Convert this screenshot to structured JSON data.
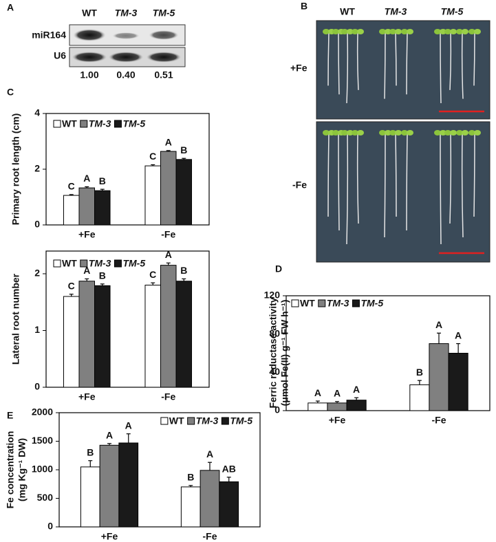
{
  "panel_labels": [
    "A",
    "B",
    "C",
    "D",
    "E"
  ],
  "blot": {
    "columns": [
      "WT",
      "TM-3",
      "TM-5"
    ],
    "rows": [
      "miR164",
      "U6"
    ],
    "quantities": [
      "1.00",
      "0.40",
      "0.51"
    ]
  },
  "photo": {
    "columns": [
      "WT",
      "TM-3",
      "TM-5"
    ],
    "rows": [
      "+Fe",
      "-Fe"
    ]
  },
  "chart_data": [
    {
      "type": "bar",
      "ylabel": "Primary root length (cm)",
      "categories": [
        "+Fe",
        "-Fe"
      ],
      "series": [
        {
          "name": "WT",
          "color": "#ffffff",
          "values": [
            1.06,
            2.12
          ],
          "errors": [
            0.03,
            0.04
          ],
          "letters": [
            "C",
            "C"
          ]
        },
        {
          "name": "TM-3",
          "color": "#808080",
          "values": [
            1.33,
            2.64
          ],
          "errors": [
            0.04,
            0.03
          ],
          "letters": [
            "A",
            "A"
          ]
        },
        {
          "name": "TM-5",
          "color": "#1a1a1a",
          "values": [
            1.23,
            2.35
          ],
          "errors": [
            0.05,
            0.04
          ],
          "letters": [
            "B",
            "B"
          ]
        }
      ],
      "ylim": [
        0,
        4
      ],
      "yticks": [
        0,
        2,
        4
      ],
      "legend": "upper left"
    },
    {
      "type": "bar",
      "ylabel": "Lateral root number",
      "categories": [
        "+Fe",
        "-Fe"
      ],
      "series": [
        {
          "name": "WT",
          "color": "#ffffff",
          "values": [
            1.6,
            1.8
          ],
          "errors": [
            0.04,
            0.04
          ],
          "letters": [
            "C",
            "C"
          ]
        },
        {
          "name": "TM-3",
          "color": "#808080",
          "values": [
            1.87,
            2.15
          ],
          "errors": [
            0.04,
            0.04
          ],
          "letters": [
            "A",
            "A"
          ]
        },
        {
          "name": "TM-5",
          "color": "#1a1a1a",
          "values": [
            1.79,
            1.87
          ],
          "errors": [
            0.03,
            0.04
          ],
          "letters": [
            "B",
            "B"
          ]
        }
      ],
      "ylim": [
        0,
        2.4
      ],
      "yticks": [
        0,
        1,
        2
      ],
      "legend": "upper left"
    },
    {
      "type": "bar",
      "ylabel_lines": [
        "Ferric reductase activity",
        "(μmol Fe(II) g⁻¹ FW h⁻¹)"
      ],
      "categories": [
        "+Fe",
        "-Fe"
      ],
      "series": [
        {
          "name": "WT",
          "color": "#ffffff",
          "values": [
            8,
            27
          ],
          "errors": [
            2,
            4.5
          ],
          "letters": [
            "A",
            "B"
          ]
        },
        {
          "name": "TM-3",
          "color": "#808080",
          "values": [
            8,
            70
          ],
          "errors": [
            1.5,
            11
          ],
          "letters": [
            "A",
            "A"
          ]
        },
        {
          "name": "TM-5",
          "color": "#1a1a1a",
          "values": [
            11,
            60
          ],
          "errors": [
            2.5,
            10
          ],
          "letters": [
            "A",
            "A"
          ]
        }
      ],
      "ylim": [
        0,
        120
      ],
      "yticks": [
        0,
        40,
        80,
        120
      ],
      "legend": "upper left"
    },
    {
      "type": "bar",
      "ylabel_lines": [
        "Fe concentration",
        "(mg Kg⁻¹ DW)"
      ],
      "categories": [
        "+Fe",
        "-Fe"
      ],
      "series": [
        {
          "name": "WT",
          "color": "#ffffff",
          "values": [
            1050,
            700
          ],
          "errors": [
            110,
            25
          ],
          "letters": [
            "B",
            "B"
          ]
        },
        {
          "name": "TM-3",
          "color": "#808080",
          "values": [
            1430,
            990
          ],
          "errors": [
            30,
            140
          ],
          "letters": [
            "A",
            "A"
          ]
        },
        {
          "name": "TM-5",
          "color": "#1a1a1a",
          "values": [
            1470,
            790
          ],
          "errors": [
            160,
            80
          ],
          "letters": [
            "A",
            "AB"
          ]
        }
      ],
      "ylim": [
        0,
        2000
      ],
      "yticks": [
        0,
        500,
        1000,
        1500,
        2000
      ],
      "legend": "upper right"
    }
  ]
}
